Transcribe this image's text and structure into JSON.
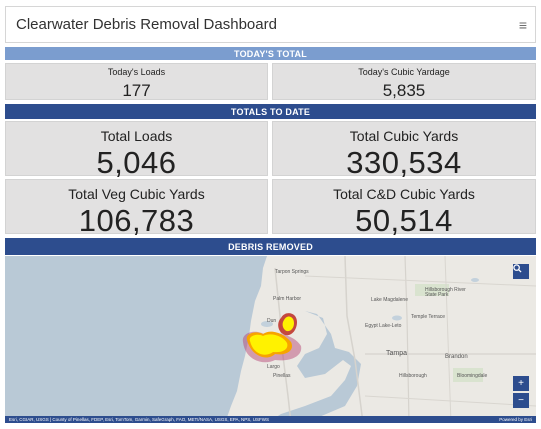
{
  "header": {
    "title": "Clearwater Debris Removal Dashboard",
    "menu_icon": "hamburger-icon"
  },
  "todays_total": {
    "heading": "TODAY'S TOTAL",
    "loads_label": "Today's Loads",
    "loads_value": "177",
    "yardage_label": "Today's Cubic Yardage",
    "yardage_value": "5,835"
  },
  "totals_to_date": {
    "heading": "TOTALS TO DATE",
    "loads_label": "Total Loads",
    "loads_value": "5,046",
    "cubic_label": "Total Cubic Yards",
    "cubic_value": "330,534",
    "veg_label": "Total Veg Cubic Yards",
    "veg_value": "106,783",
    "cd_label": "Total C&D Cubic Yards",
    "cd_value": "50,514"
  },
  "map": {
    "heading": "DEBRIS REMOVED",
    "labels": {
      "tarpon": "Tarpon Springs",
      "palm_harbor": "Palm Harbor",
      "lake_magdalene": "Lake Magdalene",
      "hillsborough_park": "Hillsborough River State Park",
      "dunedin": "Dun",
      "temple_terrace": "Temple Terrace",
      "egypt_lake": "Egypt Lake-Leto",
      "tampa": "Tampa",
      "brandon": "Brandon",
      "largo": "Largo",
      "pinellas": "Pinellas",
      "hillsborough": "Hillsborough",
      "bloomingdale": "Bloomingdale"
    },
    "attribution": "Esri, CGIAR, USGS | County of Pinellas, FDEP, Esri, TomTom, Garmin, SafeGraph, FAO, METI/NASA, USGS, EPA, NPS, USFWS",
    "powered_by": "Powered by Esri",
    "zoom_in": "+",
    "zoom_out": "−",
    "search_icon": "search-icon",
    "colors": {
      "water": "#b9c9d6",
      "land": "#ebe9e4",
      "heat_hot": "#fff200",
      "heat_edge": "#b43c6e"
    }
  }
}
